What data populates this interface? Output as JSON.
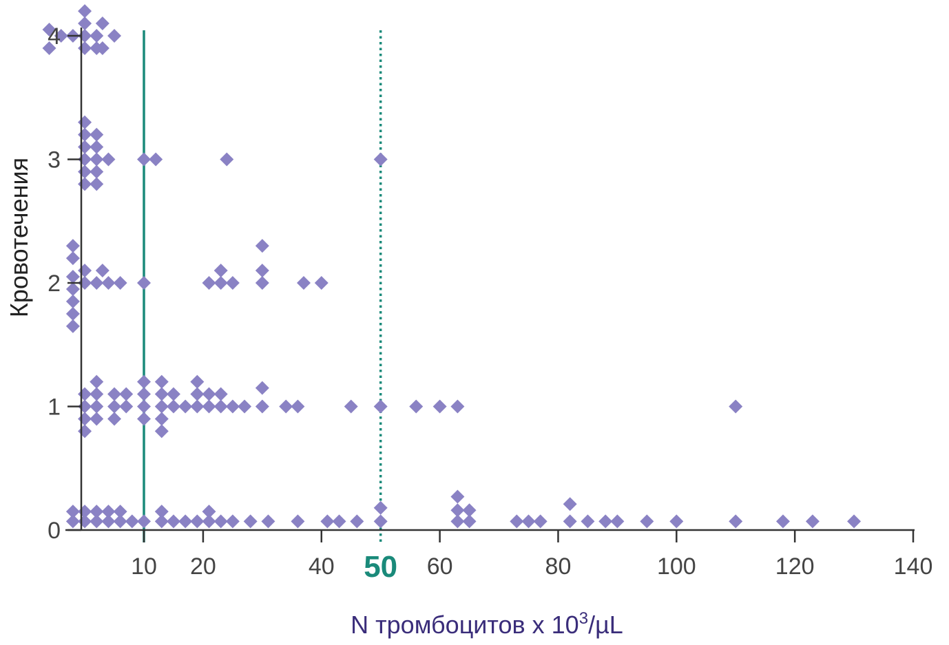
{
  "chart_data": {
    "type": "scatter",
    "xlabel": "N тромбоцитов x 10",
    "xlabel_sup": "3",
    "xlabel_unit": "/µL",
    "ylabel": "Кровотечения",
    "xlim": [
      -7,
      140
    ],
    "ylim": [
      0,
      4
    ],
    "x_ticks": [
      10,
      20,
      40,
      60,
      80,
      100,
      120,
      140
    ],
    "y_ticks": [
      0,
      1,
      2,
      3,
      4
    ],
    "grid": false,
    "reference_lines": [
      {
        "x": 10,
        "style": "solid",
        "color": "#1a8a7a"
      },
      {
        "x": 50,
        "style": "dotted",
        "label": "50",
        "color": "#1a8a7a"
      }
    ],
    "colors": {
      "points": "#8a82c4",
      "axis": "#333333",
      "xlabel": "#3a2d7a"
    },
    "series": [
      {
        "values": [
          {
            "x": -6,
            "y": 4.05
          },
          {
            "x": -6,
            "y": 3.9
          },
          {
            "x": -4,
            "y": 4.0
          },
          {
            "x": -2,
            "y": 4.0
          },
          {
            "x": 0,
            "y": 4.2
          },
          {
            "x": 0,
            "y": 4.1
          },
          {
            "x": 0,
            "y": 4.0
          },
          {
            "x": 0,
            "y": 3.9
          },
          {
            "x": 2,
            "y": 4.0
          },
          {
            "x": 2,
            "y": 3.9
          },
          {
            "x": 3,
            "y": 4.1
          },
          {
            "x": 5,
            "y": 4.0
          },
          {
            "x": 3,
            "y": 3.9
          },
          {
            "x": 0,
            "y": 3.3
          },
          {
            "x": 0,
            "y": 3.2
          },
          {
            "x": 0,
            "y": 3.1
          },
          {
            "x": 0,
            "y": 3.0
          },
          {
            "x": 0,
            "y": 2.9
          },
          {
            "x": 0,
            "y": 2.8
          },
          {
            "x": 2,
            "y": 3.2
          },
          {
            "x": 2,
            "y": 3.1
          },
          {
            "x": 2,
            "y": 3.0
          },
          {
            "x": 2,
            "y": 2.9
          },
          {
            "x": 2,
            "y": 2.8
          },
          {
            "x": 4,
            "y": 3.0
          },
          {
            "x": 10,
            "y": 3.0
          },
          {
            "x": 12,
            "y": 3.0
          },
          {
            "x": 24,
            "y": 3.0
          },
          {
            "x": 50,
            "y": 3.0
          },
          {
            "x": -2,
            "y": 2.3
          },
          {
            "x": -2,
            "y": 2.2
          },
          {
            "x": -2,
            "y": 2.05
          },
          {
            "x": -2,
            "y": 1.95
          },
          {
            "x": -2,
            "y": 1.85
          },
          {
            "x": -2,
            "y": 1.75
          },
          {
            "x": -2,
            "y": 1.65
          },
          {
            "x": 0,
            "y": 2.1
          },
          {
            "x": 0,
            "y": 2.0
          },
          {
            "x": 2,
            "y": 2.0
          },
          {
            "x": 3,
            "y": 2.1
          },
          {
            "x": 4,
            "y": 2.0
          },
          {
            "x": 6,
            "y": 2.0
          },
          {
            "x": 10,
            "y": 2.0
          },
          {
            "x": 21,
            "y": 2.0
          },
          {
            "x": 23,
            "y": 2.1
          },
          {
            "x": 23,
            "y": 2.0
          },
          {
            "x": 25,
            "y": 2.0
          },
          {
            "x": 30,
            "y": 2.3
          },
          {
            "x": 30,
            "y": 2.1
          },
          {
            "x": 30,
            "y": 2.0
          },
          {
            "x": 37,
            "y": 2.0
          },
          {
            "x": 40,
            "y": 2.0
          },
          {
            "x": 0,
            "y": 1.1
          },
          {
            "x": 0,
            "y": 1.0
          },
          {
            "x": 0,
            "y": 0.9
          },
          {
            "x": 0,
            "y": 0.8
          },
          {
            "x": 2,
            "y": 1.2
          },
          {
            "x": 2,
            "y": 1.1
          },
          {
            "x": 2,
            "y": 1.0
          },
          {
            "x": 2,
            "y": 0.9
          },
          {
            "x": 5,
            "y": 1.1
          },
          {
            "x": 5,
            "y": 1.0
          },
          {
            "x": 5,
            "y": 0.9
          },
          {
            "x": 7,
            "y": 1.1
          },
          {
            "x": 7,
            "y": 1.0
          },
          {
            "x": 10,
            "y": 1.2
          },
          {
            "x": 10,
            "y": 1.1
          },
          {
            "x": 10,
            "y": 1.0
          },
          {
            "x": 10,
            "y": 0.9
          },
          {
            "x": 13,
            "y": 1.2
          },
          {
            "x": 13,
            "y": 1.1
          },
          {
            "x": 13,
            "y": 1.0
          },
          {
            "x": 13,
            "y": 0.9
          },
          {
            "x": 13,
            "y": 0.8
          },
          {
            "x": 15,
            "y": 1.1
          },
          {
            "x": 15,
            "y": 1.0
          },
          {
            "x": 17,
            "y": 1.0
          },
          {
            "x": 19,
            "y": 1.2
          },
          {
            "x": 19,
            "y": 1.1
          },
          {
            "x": 19,
            "y": 1.0
          },
          {
            "x": 21,
            "y": 1.1
          },
          {
            "x": 21,
            "y": 1.0
          },
          {
            "x": 23,
            "y": 1.1
          },
          {
            "x": 23,
            "y": 1.0
          },
          {
            "x": 25,
            "y": 1.0
          },
          {
            "x": 27,
            "y": 1.0
          },
          {
            "x": 30,
            "y": 1.15
          },
          {
            "x": 30,
            "y": 1.0
          },
          {
            "x": 34,
            "y": 1.0
          },
          {
            "x": 36,
            "y": 1.0
          },
          {
            "x": 45,
            "y": 1.0
          },
          {
            "x": 50,
            "y": 1.0
          },
          {
            "x": 56,
            "y": 1.0
          },
          {
            "x": 60,
            "y": 1.0
          },
          {
            "x": 63,
            "y": 1.0
          },
          {
            "x": 110,
            "y": 1.0
          },
          {
            "x": -2,
            "y": 0.15
          },
          {
            "x": 0,
            "y": 0.15
          },
          {
            "x": 2,
            "y": 0.15
          },
          {
            "x": 4,
            "y": 0.15
          },
          {
            "x": 6,
            "y": 0.15
          },
          {
            "x": -2,
            "y": 0.07
          },
          {
            "x": 0,
            "y": 0.07
          },
          {
            "x": 2,
            "y": 0.07
          },
          {
            "x": 4,
            "y": 0.07
          },
          {
            "x": 6,
            "y": 0.07
          },
          {
            "x": 8,
            "y": 0.07
          },
          {
            "x": 10,
            "y": 0.07
          },
          {
            "x": 13,
            "y": 0.15
          },
          {
            "x": 13,
            "y": 0.07
          },
          {
            "x": 15,
            "y": 0.07
          },
          {
            "x": 17,
            "y": 0.07
          },
          {
            "x": 19,
            "y": 0.07
          },
          {
            "x": 21,
            "y": 0.15
          },
          {
            "x": 21,
            "y": 0.07
          },
          {
            "x": 23,
            "y": 0.07
          },
          {
            "x": 25,
            "y": 0.07
          },
          {
            "x": 28,
            "y": 0.07
          },
          {
            "x": 31,
            "y": 0.07
          },
          {
            "x": 36,
            "y": 0.07
          },
          {
            "x": 41,
            "y": 0.07
          },
          {
            "x": 43,
            "y": 0.07
          },
          {
            "x": 46,
            "y": 0.07
          },
          {
            "x": 50,
            "y": 0.18
          },
          {
            "x": 50,
            "y": 0.07
          },
          {
            "x": 63,
            "y": 0.27
          },
          {
            "x": 63,
            "y": 0.16
          },
          {
            "x": 65,
            "y": 0.16
          },
          {
            "x": 63,
            "y": 0.07
          },
          {
            "x": 65,
            "y": 0.07
          },
          {
            "x": 73,
            "y": 0.07
          },
          {
            "x": 75,
            "y": 0.07
          },
          {
            "x": 77,
            "y": 0.07
          },
          {
            "x": 82,
            "y": 0.21
          },
          {
            "x": 82,
            "y": 0.07
          },
          {
            "x": 85,
            "y": 0.07
          },
          {
            "x": 88,
            "y": 0.07
          },
          {
            "x": 90,
            "y": 0.07
          },
          {
            "x": 95,
            "y": 0.07
          },
          {
            "x": 100,
            "y": 0.07
          },
          {
            "x": 110,
            "y": 0.07
          },
          {
            "x": 118,
            "y": 0.07
          },
          {
            "x": 123,
            "y": 0.07
          },
          {
            "x": 130,
            "y": 0.07
          }
        ]
      }
    ]
  }
}
